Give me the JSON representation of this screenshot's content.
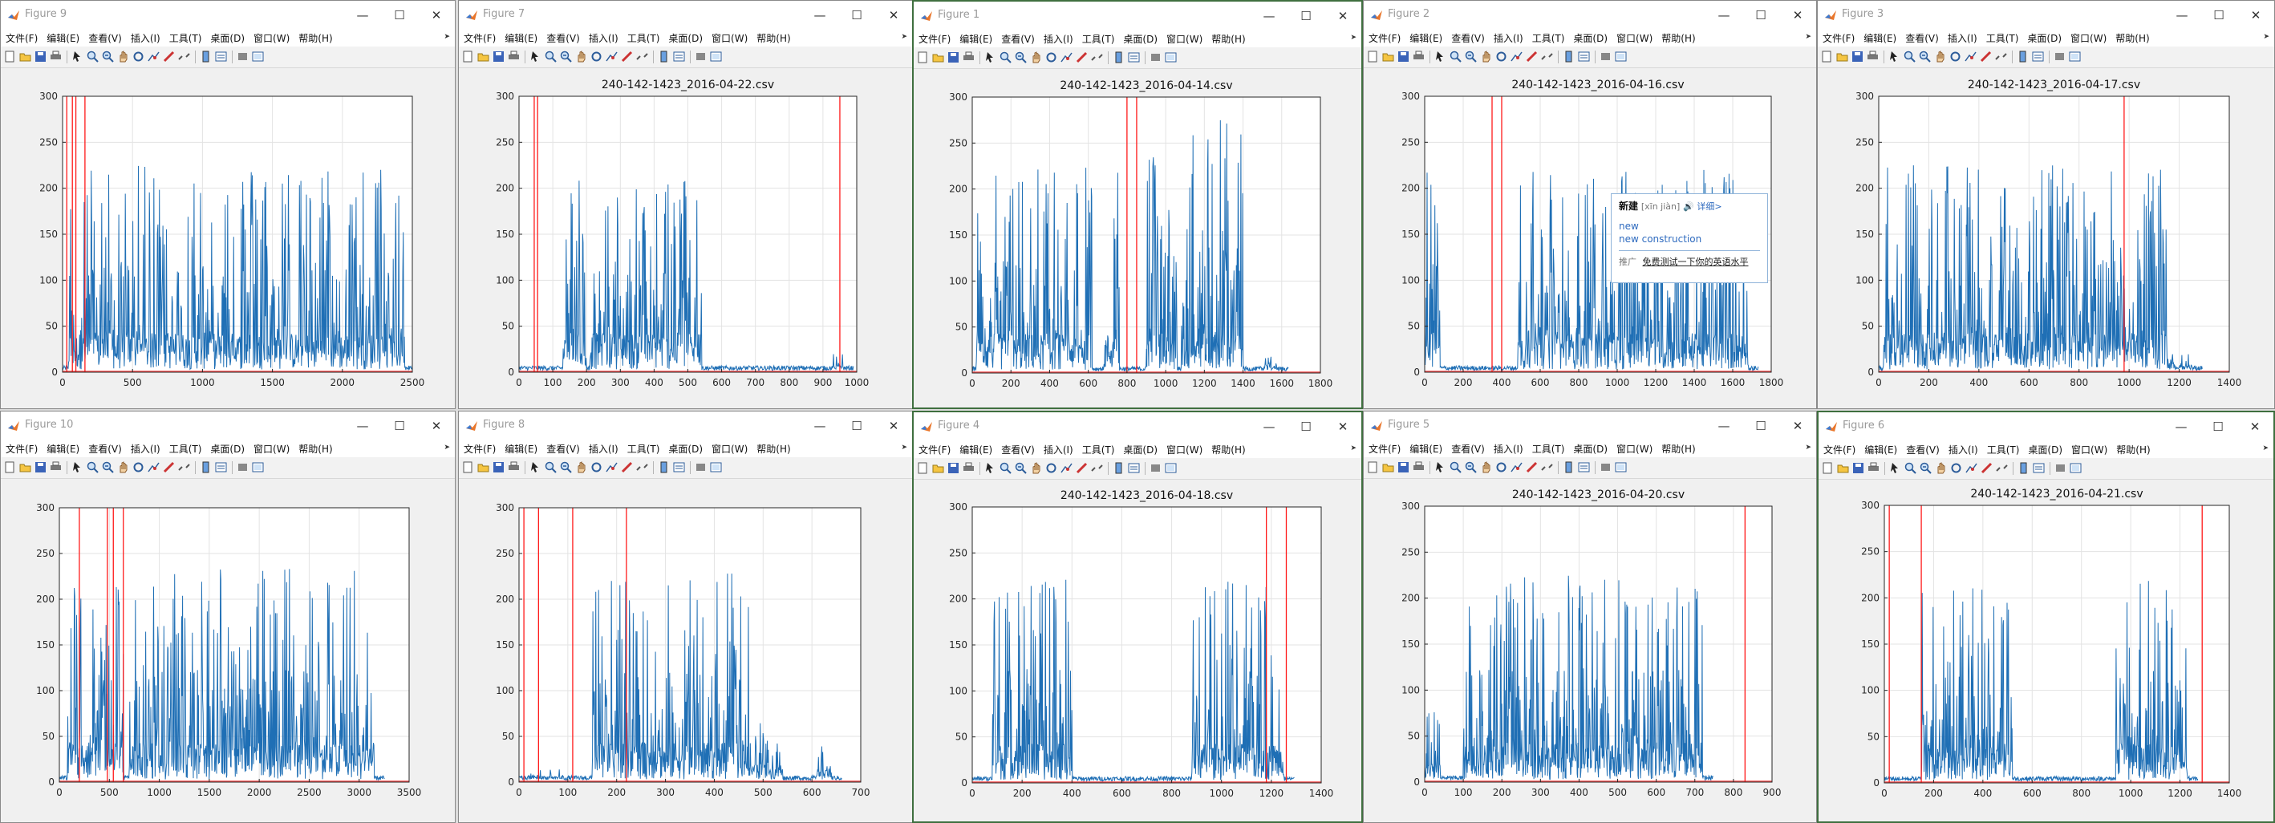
{
  "menu": [
    "文件(F)",
    "编辑(E)",
    "查看(V)",
    "插入(I)",
    "工具(T)",
    "桌面(D)",
    "窗口(W)",
    "帮助(H)"
  ],
  "caption": {
    "minimize": "—",
    "maximize": "☐",
    "close": "✕"
  },
  "colors": {
    "line": "#1f6fb5",
    "marker": "#ff1a1a",
    "grid": "#e3e3e3"
  },
  "toolbar_icons": [
    "new-figure-icon",
    "open-file-icon",
    "save-icon",
    "print-icon",
    "pointer-icon",
    "zoom-in-icon",
    "zoom-out-icon",
    "pan-icon",
    "rotate-icon",
    "data-cursor-icon",
    "brush-icon",
    "link-icon",
    "colorbar-icon",
    "legend-icon",
    "hide-plot-tools-icon",
    "show-plot-tools-icon"
  ],
  "windows": [
    {
      "title": "Figure 9",
      "active": false,
      "chart_data": {
        "type": "line",
        "title": "",
        "xlim": [
          0,
          2500
        ],
        "ylim": [
          0,
          300
        ],
        "xticks": [
          0,
          500,
          1000,
          1500,
          2000,
          2500
        ],
        "yticks": [
          0,
          50,
          100,
          150,
          200,
          250,
          300
        ],
        "markers": [
          30,
          70,
          95,
          160
        ],
        "bursts": [
          [
            40,
            2450,
            225
          ]
        ]
      }
    },
    {
      "title": "Figure 7",
      "active": false,
      "chart_data": {
        "type": "line",
        "title": "240-142-1423_2016-04-22.csv",
        "xlim": [
          0,
          1000
        ],
        "ylim": [
          0,
          300
        ],
        "xticks": [
          0,
          100,
          200,
          300,
          400,
          500,
          600,
          700,
          800,
          900,
          1000
        ],
        "yticks": [
          0,
          50,
          100,
          150,
          200,
          250,
          300
        ],
        "markers": [
          45,
          55,
          950
        ],
        "bursts": [
          [
            130,
            200,
            215
          ],
          [
            210,
            350,
            200
          ],
          [
            350,
            470,
            215
          ],
          [
            470,
            540,
            220
          ],
          [
            930,
            960,
            20
          ]
        ]
      }
    },
    {
      "title": "Figure 1",
      "active": true,
      "chart_data": {
        "type": "line",
        "title": "240-142-1423_2016-04-14.csv",
        "xlim": [
          0,
          1800
        ],
        "ylim": [
          0,
          300
        ],
        "xticks": [
          0,
          200,
          400,
          600,
          800,
          1000,
          1200,
          1400,
          1600,
          1800
        ],
        "yticks": [
          0,
          50,
          100,
          150,
          200,
          250,
          300
        ],
        "markers": [
          800,
          850
        ],
        "bursts": [
          [
            20,
            620,
            225
          ],
          [
            680,
            760,
            220
          ],
          [
            900,
            1060,
            240
          ],
          [
            1080,
            1400,
            295
          ],
          [
            1500,
            1580,
            20
          ]
        ]
      }
    },
    {
      "title": "Figure 2",
      "active": false,
      "chart_data": {
        "type": "line",
        "title": "240-142-1423_2016-04-16.csv",
        "xlim": [
          0,
          1800
        ],
        "ylim": [
          0,
          300
        ],
        "xticks": [
          0,
          200,
          400,
          600,
          800,
          1000,
          1200,
          1400,
          1600,
          1800
        ],
        "yticks": [
          0,
          50,
          100,
          150,
          200,
          250,
          300
        ],
        "markers": [
          350,
          400
        ],
        "bursts": [
          [
            0,
            80,
            225
          ],
          [
            480,
            1680,
            220
          ]
        ]
      }
    },
    {
      "title": "Figure 3",
      "active": false,
      "chart_data": {
        "type": "line",
        "title": "240-142-1423_2016-04-17.csv",
        "xlim": [
          0,
          1400
        ],
        "ylim": [
          0,
          300
        ],
        "xticks": [
          0,
          200,
          400,
          600,
          800,
          1000,
          1200,
          1400
        ],
        "yticks": [
          0,
          50,
          100,
          150,
          200,
          250,
          300
        ],
        "markers": [
          980
        ],
        "bursts": [
          [
            20,
            1150,
            225
          ],
          [
            1150,
            1250,
            20
          ]
        ]
      }
    },
    {
      "title": "Figure 10",
      "active": false,
      "chart_data": {
        "type": "line",
        "title": "",
        "xlim": [
          0,
          3500
        ],
        "ylim": [
          0,
          300
        ],
        "xticks": [
          0,
          500,
          1000,
          1500,
          2000,
          2500,
          3000,
          3500
        ],
        "yticks": [
          0,
          50,
          100,
          150,
          200,
          250,
          300
        ],
        "markers": [
          200,
          480,
          540,
          640
        ],
        "bursts": [
          [
            80,
            640,
            220
          ],
          [
            700,
            3150,
            235
          ]
        ]
      }
    },
    {
      "title": "Figure 8",
      "active": false,
      "chart_data": {
        "type": "line",
        "title": "",
        "xlim": [
          0,
          700
        ],
        "ylim": [
          0,
          300
        ],
        "xticks": [
          0,
          100,
          200,
          300,
          400,
          500,
          600,
          700
        ],
        "yticks": [
          0,
          50,
          100,
          150,
          200,
          250,
          300
        ],
        "markers": [
          10,
          40,
          110,
          220
        ],
        "bursts": [
          [
            20,
            90,
            15
          ],
          [
            150,
            270,
            220
          ],
          [
            270,
            470,
            230
          ],
          [
            470,
            540,
            65
          ],
          [
            610,
            640,
            40
          ]
        ]
      }
    },
    {
      "title": "Figure 4",
      "active": true,
      "chart_data": {
        "type": "line",
        "title": "240-142-1423_2016-04-18.csv",
        "xlim": [
          0,
          1400
        ],
        "ylim": [
          0,
          300
        ],
        "xticks": [
          0,
          200,
          400,
          600,
          800,
          1000,
          1200,
          1400
        ],
        "yticks": [
          0,
          50,
          100,
          150,
          200,
          250,
          300
        ],
        "markers": [
          1180,
          1260
        ],
        "bursts": [
          [
            80,
            400,
            230
          ],
          [
            880,
            1250,
            220
          ]
        ]
      }
    },
    {
      "title": "Figure 5",
      "active": false,
      "chart_data": {
        "type": "line",
        "title": "240-142-1423_2016-04-20.csv",
        "xlim": [
          0,
          900
        ],
        "ylim": [
          0,
          300
        ],
        "xticks": [
          0,
          100,
          200,
          300,
          400,
          500,
          600,
          700,
          800,
          900
        ],
        "yticks": [
          0,
          50,
          100,
          150,
          200,
          250,
          300
        ],
        "markers": [
          830
        ],
        "bursts": [
          [
            0,
            40,
            80
          ],
          [
            100,
            720,
            225
          ]
        ]
      }
    },
    {
      "title": "Figure 6",
      "active": true,
      "chart_data": {
        "type": "line",
        "title": "240-142-1423_2016-04-21.csv",
        "xlim": [
          0,
          1400
        ],
        "ylim": [
          0,
          300
        ],
        "xticks": [
          0,
          200,
          400,
          600,
          800,
          1000,
          1200,
          1400
        ],
        "yticks": [
          0,
          50,
          100,
          150,
          200,
          250,
          300
        ],
        "markers": [
          20,
          150,
          1290
        ],
        "bursts": [
          [
            150,
            520,
            215
          ],
          [
            940,
            1230,
            220
          ]
        ]
      }
    }
  ],
  "tooltip": {
    "word": "新建",
    "pinyin": "[xīn jiàn]",
    "more": "详细>",
    "lines": [
      "new",
      "new construction"
    ],
    "ad_label": "推广",
    "ad_text": "免费测试一下你的英语水平"
  }
}
